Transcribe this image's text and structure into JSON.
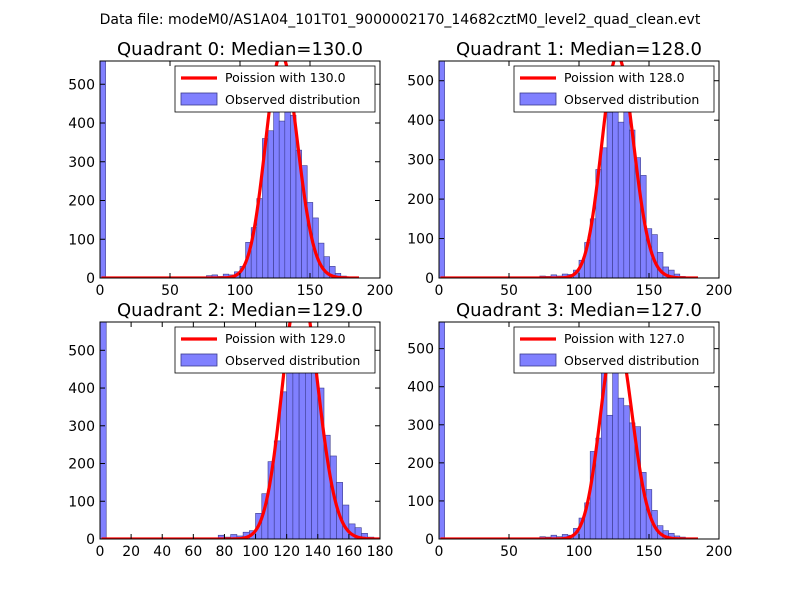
{
  "figure": {
    "suptitle": "Data file: modeM0/AS1A04_101T01_9000002170_14682cztM0_level2_quad_clean.evt",
    "hist_color": "#8080ff",
    "hist_edge": "#3a3a8c",
    "fit_color": "#ff0000"
  },
  "chart_data": [
    {
      "type": "bar",
      "title": "Quadrant 0: Median=130.0",
      "median": 130.0,
      "xlim": [
        0,
        200
      ],
      "ylim": [
        0,
        560
      ],
      "xticks": [
        0,
        50,
        100,
        150,
        200
      ],
      "yticks": [
        0,
        100,
        200,
        300,
        400,
        500
      ],
      "legend": [
        "Poission with 130.0",
        "Observed distribution"
      ],
      "bin_width": 4,
      "bins": [
        [
          0,
          560
        ],
        [
          76,
          6
        ],
        [
          80,
          8
        ],
        [
          84,
          4
        ],
        [
          88,
          10
        ],
        [
          92,
          8
        ],
        [
          96,
          16
        ],
        [
          100,
          30
        ],
        [
          104,
          92
        ],
        [
          108,
          130
        ],
        [
          112,
          205
        ],
        [
          116,
          360
        ],
        [
          120,
          380
        ],
        [
          124,
          455
        ],
        [
          128,
          405
        ],
        [
          132,
          430
        ],
        [
          136,
          420
        ],
        [
          140,
          330
        ],
        [
          144,
          290
        ],
        [
          148,
          195
        ],
        [
          152,
          155
        ],
        [
          156,
          90
        ],
        [
          160,
          55
        ],
        [
          164,
          30
        ],
        [
          168,
          12
        ],
        [
          172,
          5
        ],
        [
          176,
          3
        ]
      ]
    },
    {
      "type": "bar",
      "title": "Quadrant 1: Median=128.0",
      "median": 128.0,
      "xlim": [
        0,
        200
      ],
      "ylim": [
        0,
        550
      ],
      "xticks": [
        0,
        50,
        100,
        150,
        200
      ],
      "yticks": [
        0,
        100,
        200,
        300,
        400,
        500
      ],
      "legend": [
        "Poission with 128.0",
        "Observed distribution"
      ],
      "bin_width": 4,
      "bins": [
        [
          0,
          550
        ],
        [
          72,
          5
        ],
        [
          76,
          4
        ],
        [
          80,
          8
        ],
        [
          84,
          5
        ],
        [
          88,
          10
        ],
        [
          92,
          9
        ],
        [
          96,
          20
        ],
        [
          100,
          45
        ],
        [
          104,
          90
        ],
        [
          108,
          150
        ],
        [
          112,
          275
        ],
        [
          116,
          330
        ],
        [
          120,
          420
        ],
        [
          124,
          480
        ],
        [
          128,
          395
        ],
        [
          132,
          450
        ],
        [
          136,
          375
        ],
        [
          140,
          305
        ],
        [
          144,
          260
        ],
        [
          148,
          125
        ],
        [
          152,
          110
        ],
        [
          156,
          65
        ],
        [
          160,
          28
        ],
        [
          164,
          20
        ],
        [
          168,
          10
        ],
        [
          172,
          4
        ],
        [
          176,
          2
        ]
      ]
    },
    {
      "type": "bar",
      "title": "Quadrant 2: Median=129.0",
      "median": 129.0,
      "xlim": [
        0,
        180
      ],
      "ylim": [
        0,
        575
      ],
      "xticks": [
        0,
        20,
        40,
        60,
        80,
        100,
        120,
        140,
        160,
        180
      ],
      "yticks": [
        0,
        100,
        200,
        300,
        400,
        500
      ],
      "legend": [
        "Poission with 129.0",
        "Observed distribution"
      ],
      "bin_width": 4,
      "bins": [
        [
          0,
          575
        ],
        [
          76,
          10
        ],
        [
          80,
          5
        ],
        [
          84,
          12
        ],
        [
          88,
          8
        ],
        [
          92,
          18
        ],
        [
          96,
          22
        ],
        [
          100,
          68
        ],
        [
          104,
          120
        ],
        [
          108,
          205
        ],
        [
          112,
          260
        ],
        [
          116,
          390
        ],
        [
          120,
          440
        ],
        [
          124,
          520
        ],
        [
          128,
          505
        ],
        [
          132,
          520
        ],
        [
          136,
          460
        ],
        [
          140,
          400
        ],
        [
          144,
          275
        ],
        [
          148,
          220
        ],
        [
          152,
          150
        ],
        [
          156,
          90
        ],
        [
          160,
          40
        ],
        [
          164,
          30
        ],
        [
          168,
          15
        ],
        [
          172,
          5
        ],
        [
          176,
          3
        ]
      ]
    },
    {
      "type": "bar",
      "title": "Quadrant 3: Median=127.0",
      "median": 127.0,
      "xlim": [
        0,
        200
      ],
      "ylim": [
        0,
        570
      ],
      "xticks": [
        0,
        50,
        100,
        150,
        200
      ],
      "yticks": [
        0,
        100,
        200,
        300,
        400,
        500
      ],
      "legend": [
        "Poission with 127.0",
        "Observed distribution"
      ],
      "bin_width": 4,
      "bins": [
        [
          0,
          570
        ],
        [
          72,
          6
        ],
        [
          76,
          5
        ],
        [
          80,
          10
        ],
        [
          84,
          6
        ],
        [
          88,
          12
        ],
        [
          92,
          10
        ],
        [
          96,
          28
        ],
        [
          100,
          55
        ],
        [
          104,
          95
        ],
        [
          108,
          230
        ],
        [
          112,
          265
        ],
        [
          116,
          455
        ],
        [
          120,
          325
        ],
        [
          124,
          525
        ],
        [
          128,
          370
        ],
        [
          132,
          350
        ],
        [
          136,
          305
        ],
        [
          140,
          295
        ],
        [
          144,
          175
        ],
        [
          148,
          130
        ],
        [
          152,
          75
        ],
        [
          156,
          35
        ],
        [
          160,
          22
        ],
        [
          164,
          15
        ],
        [
          168,
          8
        ],
        [
          172,
          5
        ],
        [
          176,
          2
        ],
        [
          180,
          1
        ]
      ]
    }
  ]
}
